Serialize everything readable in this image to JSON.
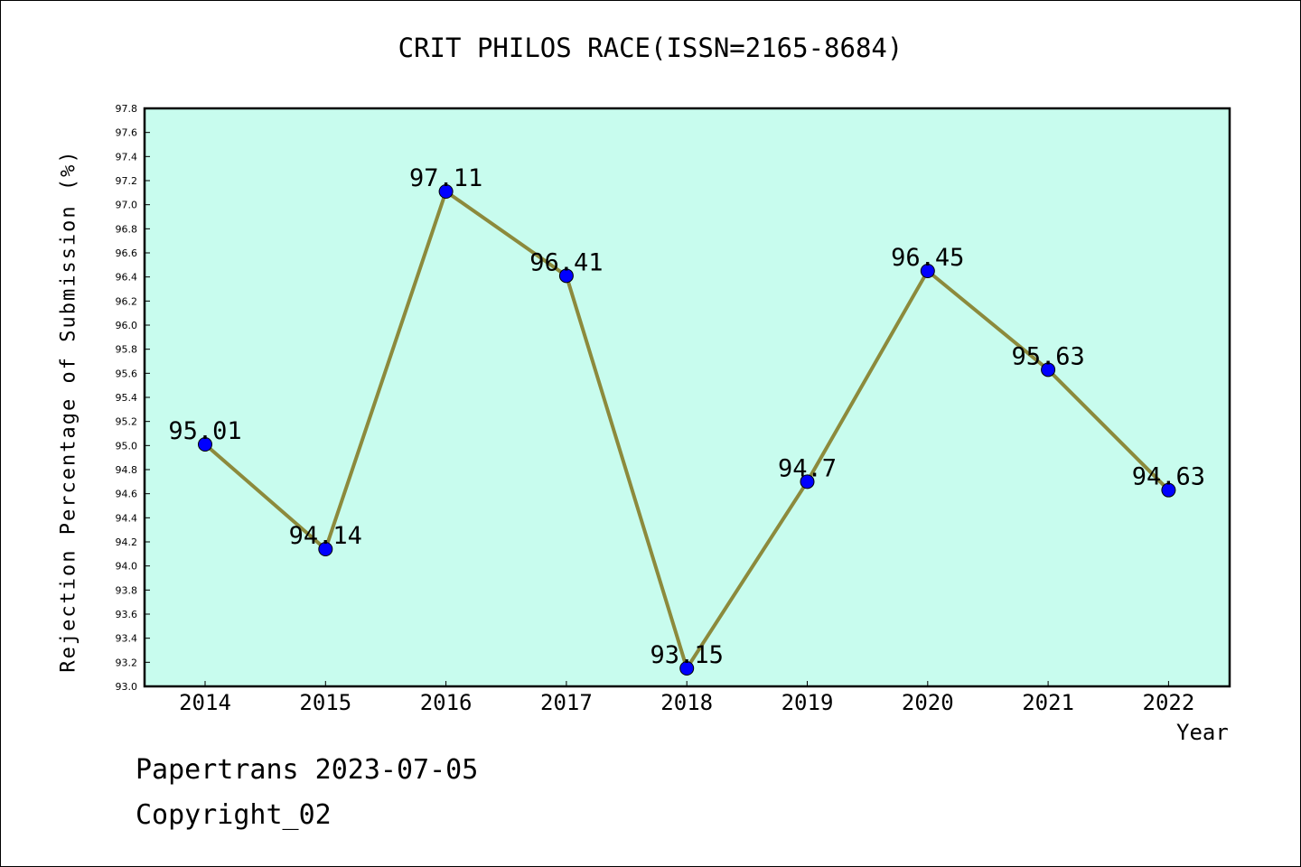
{
  "chart_data": {
    "type": "line",
    "title": "CRIT PHILOS RACE(ISSN=2165-8684)",
    "xlabel": "Year",
    "ylabel": "Rejection Percentage of Submission (%)",
    "categories": [
      "2014",
      "2015",
      "2016",
      "2017",
      "2018",
      "2019",
      "2020",
      "2021",
      "2022"
    ],
    "series": [
      {
        "values": [
          95.01,
          94.14,
          97.11,
          96.41,
          93.15,
          94.7,
          96.45,
          95.63,
          94.63
        ],
        "labels": [
          "95.01",
          "94.14",
          "97.11",
          "96.41",
          "93.15",
          "94.7",
          "96.45",
          "95.63",
          "94.63"
        ]
      }
    ],
    "ylim": [
      93.0,
      97.8
    ],
    "yticks": [
      "93.0",
      "93.2",
      "93.4",
      "93.6",
      "93.8",
      "94.0",
      "94.2",
      "94.4",
      "94.6",
      "94.8",
      "95.0",
      "95.2",
      "95.4",
      "95.6",
      "95.8",
      "96.0",
      "96.2",
      "96.4",
      "96.6",
      "96.8",
      "97.0",
      "97.2",
      "97.4",
      "97.6",
      "97.8"
    ],
    "grid": false,
    "colors": {
      "plot_background": "#c8fcee",
      "line": "#8c8a3c",
      "marker": "#0000ff"
    }
  },
  "footer": {
    "line1": "Papertrans 2023-07-05",
    "line2": "Copyright_02"
  }
}
